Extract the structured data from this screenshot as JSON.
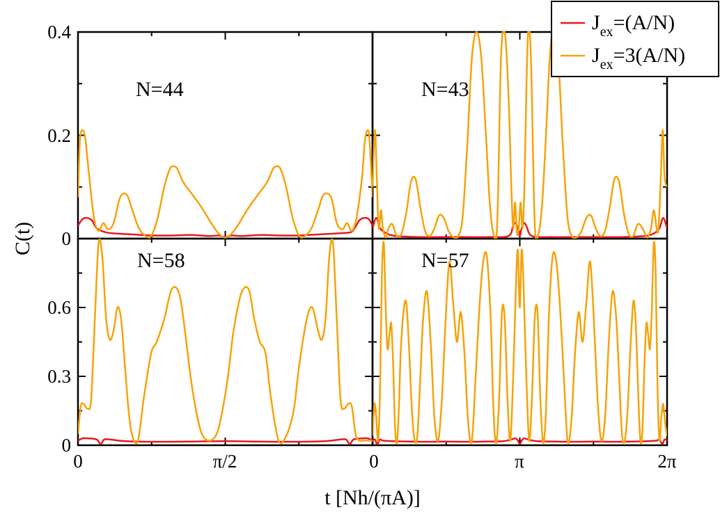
{
  "chart_data": {
    "type": "line",
    "xlabel": "t [Nh/(πA)]",
    "ylabel": "C(t)",
    "grid": false,
    "legend": {
      "placement": "top-right",
      "entries": [
        {
          "prefix": "J",
          "sub": "ex",
          "suffix": "=(A/N)",
          "color": "#e8181c"
        },
        {
          "prefix": "J",
          "sub": "ex",
          "suffix": "=3(A/N)",
          "color": "#f5a30a"
        }
      ]
    },
    "x_ticks_left": [
      "0",
      "π/2"
    ],
    "x_ticks_right": [
      "0",
      "π",
      "2π"
    ],
    "y_ticks_top": [
      "0.4",
      "0.2",
      "0"
    ],
    "y_ticks_bottom": [
      "0.6",
      "0.3",
      "0"
    ],
    "panels": [
      {
        "label": "N=44",
        "xlim": [
          0,
          3.1416
        ],
        "ylim": [
          0,
          0.4
        ],
        "series": [
          {
            "name": "Jex=(A/N)",
            "color": "#e8181c",
            "x": [
              0,
              0.05,
              0.1,
              0.15,
              0.2,
              0.3,
              0.4,
              0.6,
              0.8,
              1.0,
              1.2,
              1.4,
              1.5,
              1.57,
              1.64,
              1.75,
              1.95,
              2.15,
              2.35,
              2.55,
              2.75,
              2.9,
              2.95,
              3.0,
              3.05,
              3.1,
              3.1416
            ],
            "y": [
              0.025,
              0.038,
              0.04,
              0.035,
              0.02,
              0.012,
              0.01,
              0.008,
              0.006,
              0.006,
              0.007,
              0.005,
              0.006,
              0.003,
              0.006,
              0.005,
              0.007,
              0.006,
              0.006,
              0.008,
              0.01,
              0.012,
              0.02,
              0.035,
              0.04,
              0.038,
              0.025
            ]
          },
          {
            "name": "Jex=3(A/N)",
            "color": "#f5a30a",
            "x": [
              0,
              0.02,
              0.05,
              0.08,
              0.12,
              0.17,
              0.22,
              0.27,
              0.32,
              0.38,
              0.45,
              0.52,
              0.58,
              0.65,
              0.72,
              0.78,
              0.85,
              0.92,
              0.98,
              1.02,
              1.06,
              1.12,
              1.2,
              1.32,
              1.42,
              1.5,
              1.57,
              1.64,
              1.72,
              1.82,
              1.94,
              2.02,
              2.08,
              2.12,
              2.16,
              2.22,
              2.29,
              2.36,
              2.42,
              2.49,
              2.56,
              2.62,
              2.7,
              2.76,
              2.82,
              2.87,
              2.92,
              2.97,
              3.03,
              3.06,
              3.09,
              3.11,
              3.1416
            ],
            "y": [
              0.08,
              0.19,
              0.21,
              0.19,
              0.12,
              0.04,
              0.015,
              0.03,
              0.018,
              0.03,
              0.08,
              0.085,
              0.055,
              0.02,
              0.005,
              0.005,
              0.04,
              0.1,
              0.135,
              0.14,
              0.135,
              0.11,
              0.09,
              0.06,
              0.03,
              0.01,
              0.002,
              0.01,
              0.03,
              0.06,
              0.09,
              0.11,
              0.135,
              0.14,
              0.135,
              0.1,
              0.04,
              0.005,
              0.005,
              0.02,
              0.055,
              0.085,
              0.08,
              0.03,
              0.018,
              0.03,
              0.015,
              0.04,
              0.12,
              0.19,
              0.21,
              0.19,
              0.08
            ]
          }
        ]
      },
      {
        "label": "N=43",
        "xlim": [
          0,
          6.2832
        ],
        "ylim": [
          0,
          0.4
        ],
        "series": [
          {
            "name": "Jex=(A/N)",
            "color": "#e8181c",
            "x": [
              0,
              0.08,
              0.16,
              0.3,
              0.5,
              1.0,
              1.5,
              2.0,
              2.5,
              2.9,
              3.0,
              3.05,
              3.1,
              3.14,
              3.18,
              3.23,
              3.28,
              3.4,
              3.8,
              4.3,
              4.8,
              5.3,
              5.8,
              6.0,
              6.12,
              6.2,
              6.2832
            ],
            "y": [
              0.02,
              0.04,
              0.02,
              0.01,
              0.005,
              0.003,
              0.003,
              0.003,
              0.003,
              0.005,
              0.025,
              0.03,
              0.02,
              0.005,
              0.02,
              0.03,
              0.025,
              0.005,
              0.003,
              0.003,
              0.003,
              0.003,
              0.005,
              0.01,
              0.02,
              0.04,
              0.02
            ]
          },
          {
            "name": "Jex=3(A/N)",
            "color": "#f5a30a",
            "x": [
              0,
              0.05,
              0.09,
              0.13,
              0.18,
              0.22,
              0.28,
              0.34,
              0.42,
              0.52,
              0.62,
              0.72,
              0.82,
              0.92,
              1.02,
              1.12,
              1.22,
              1.32,
              1.42,
              1.52,
              1.62,
              1.72,
              1.82,
              1.92,
              2.02,
              2.12,
              2.22,
              2.32,
              2.42,
              2.5,
              2.58,
              2.66,
              2.74,
              2.82,
              2.9,
              2.96,
              3.0,
              3.04,
              3.08,
              3.12,
              3.16,
              3.2,
              3.24,
              3.28,
              3.32,
              3.38,
              3.46,
              3.54,
              3.62,
              3.7,
              3.78,
              3.86,
              3.96,
              4.06,
              4.16,
              4.26,
              4.36,
              4.46,
              4.56,
              4.66,
              4.76,
              4.86,
              4.96,
              5.06,
              5.16,
              5.26,
              5.36,
              5.46,
              5.56,
              5.66,
              5.76,
              5.86,
              5.94,
              6.0,
              6.06,
              6.1,
              6.15,
              6.19,
              6.23,
              6.2832
            ],
            "y": [
              0.1,
              0.21,
              0.12,
              0.02,
              0.055,
              0.02,
              0.002,
              0.02,
              0.028,
              0.005,
              0.01,
              0.05,
              0.11,
              0.115,
              0.06,
              0.015,
              0.005,
              0.02,
              0.045,
              0.04,
              0.015,
              0.003,
              0.004,
              0.04,
              0.18,
              0.35,
              0.4,
              0.35,
              0.2,
              0.07,
              0.01,
              0.03,
              0.35,
              0.4,
              0.28,
              0.1,
              0.02,
              0.07,
              0.01,
              0.02,
              0.07,
              0.02,
              0.1,
              0.28,
              0.4,
              0.35,
              0.03,
              0.01,
              0.07,
              0.2,
              0.35,
              0.4,
              0.35,
              0.18,
              0.04,
              0.004,
              0.003,
              0.015,
              0.04,
              0.045,
              0.02,
              0.005,
              0.015,
              0.06,
              0.115,
              0.11,
              0.05,
              0.01,
              0.005,
              0.028,
              0.02,
              0.002,
              0.02,
              0.055,
              0.02,
              0.02,
              0.12,
              0.21,
              0.12,
              0.1
            ]
          }
        ]
      },
      {
        "label": "N=58",
        "xlim": [
          0,
          3.1416
        ],
        "ylim": [
          0,
          0.9
        ],
        "series": [
          {
            "name": "Jex=(A/N)",
            "color": "#e8181c",
            "x": [
              0,
              0.05,
              0.1,
              0.2,
              0.24,
              0.28,
              0.34,
              0.5,
              0.8,
              1.2,
              1.57,
              1.9,
              2.3,
              2.64,
              2.8,
              2.86,
              2.9,
              2.94,
              3.04,
              3.09,
              3.1416
            ],
            "y": [
              0.02,
              0.03,
              0.03,
              0.025,
              0.005,
              0.025,
              0.025,
              0.018,
              0.015,
              0.016,
              0.018,
              0.016,
              0.015,
              0.018,
              0.025,
              0.025,
              0.005,
              0.025,
              0.03,
              0.03,
              0.02
            ]
          },
          {
            "name": "Jex=3(A/N)",
            "color": "#f5a30a",
            "x": [
              0,
              0.03,
              0.06,
              0.1,
              0.14,
              0.18,
              0.22,
              0.26,
              0.3,
              0.34,
              0.38,
              0.42,
              0.46,
              0.5,
              0.54,
              0.58,
              0.64,
              0.7,
              0.78,
              0.84,
              0.92,
              1.0,
              1.08,
              1.14,
              1.2,
              1.26,
              1.32,
              1.4,
              1.48,
              1.54,
              1.6,
              1.66,
              1.74,
              1.82,
              1.88,
              1.94,
              2.0,
              2.06,
              2.14,
              2.22,
              2.3,
              2.36,
              2.44,
              2.5,
              2.56,
              2.6,
              2.64,
              2.68,
              2.72,
              2.76,
              2.8,
              2.84,
              2.88,
              2.92,
              2.96,
              3.0,
              3.04,
              3.08,
              3.11,
              3.1416
            ],
            "y": [
              0.05,
              0.17,
              0.18,
              0.16,
              0.2,
              0.55,
              0.88,
              0.82,
              0.55,
              0.46,
              0.5,
              0.6,
              0.55,
              0.35,
              0.15,
              0.04,
              0.02,
              0.2,
              0.4,
              0.45,
              0.55,
              0.68,
              0.66,
              0.5,
              0.3,
              0.15,
              0.05,
              0.02,
              0.05,
              0.15,
              0.3,
              0.5,
              0.66,
              0.68,
              0.55,
              0.45,
              0.4,
              0.2,
              0.02,
              0.04,
              0.15,
              0.35,
              0.55,
              0.6,
              0.5,
              0.46,
              0.55,
              0.82,
              0.88,
              0.55,
              0.2,
              0.16,
              0.18,
              0.17,
              0.05,
              0.02,
              0.02,
              0.02,
              0.02,
              0.02
            ]
          }
        ]
      },
      {
        "label": "N=57",
        "xlim": [
          0,
          6.2832
        ],
        "ylim": [
          0,
          0.9
        ],
        "series": [
          {
            "name": "Jex=(A/N)",
            "color": "#e8181c",
            "x": [
              0,
              0.05,
              0.1,
              0.16,
              0.22,
              0.4,
              0.8,
              1.2,
              1.6,
              2.0,
              2.4,
              2.8,
              2.96,
              3.05,
              3.1,
              3.14,
              3.18,
              3.23,
              3.32,
              3.5,
              3.9,
              4.3,
              4.7,
              5.1,
              5.5,
              5.9,
              6.06,
              6.12,
              6.18,
              6.23,
              6.2832
            ],
            "y": [
              0.02,
              0.025,
              0.005,
              0.025,
              0.02,
              0.018,
              0.016,
              0.015,
              0.016,
              0.015,
              0.016,
              0.018,
              0.025,
              0.03,
              0.02,
              0.005,
              0.02,
              0.03,
              0.025,
              0.018,
              0.016,
              0.015,
              0.016,
              0.015,
              0.016,
              0.018,
              0.02,
              0.025,
              0.005,
              0.025,
              0.02
            ]
          },
          {
            "name": "Jex=3(A/N)",
            "color": "#f5a30a",
            "x": [
              0,
              0.04,
              0.08,
              0.12,
              0.16,
              0.2,
              0.24,
              0.28,
              0.32,
              0.36,
              0.4,
              0.44,
              0.48,
              0.52,
              0.56,
              0.6,
              0.66,
              0.72,
              0.78,
              0.84,
              0.9,
              0.96,
              1.02,
              1.08,
              1.16,
              1.24,
              1.32,
              1.4,
              1.48,
              1.56,
              1.64,
              1.72,
              1.8,
              1.88,
              1.96,
              2.04,
              2.12,
              2.2,
              2.28,
              2.36,
              2.44,
              2.52,
              2.58,
              2.64,
              2.7,
              2.76,
              2.82,
              2.88,
              2.94,
              3.0,
              3.06,
              3.1,
              3.14,
              3.18,
              3.22,
              3.28,
              3.34,
              3.4,
              3.46,
              3.52,
              3.58,
              3.64,
              3.7,
              3.76,
              3.84,
              3.92,
              4.0,
              4.08,
              4.16,
              4.24,
              4.32,
              4.4,
              4.48,
              4.56,
              4.64,
              4.72,
              4.8,
              4.88,
              4.96,
              5.04,
              5.12,
              5.2,
              5.26,
              5.32,
              5.38,
              5.44,
              5.5,
              5.56,
              5.6,
              5.64,
              5.68,
              5.72,
              5.76,
              5.8,
              5.84,
              5.88,
              5.92,
              5.96,
              6.0,
              6.04,
              6.08,
              6.12,
              6.16,
              6.2,
              6.24,
              6.2832
            ],
            "y": [
              0.04,
              0.18,
              0.12,
              0.02,
              0.25,
              0.75,
              0.88,
              0.6,
              0.42,
              0.48,
              0.53,
              0.35,
              0.08,
              0.01,
              0.15,
              0.4,
              0.58,
              0.62,
              0.42,
              0.15,
              0.02,
              0.05,
              0.3,
              0.55,
              0.67,
              0.45,
              0.12,
              0.02,
              0.2,
              0.55,
              0.8,
              0.62,
              0.45,
              0.58,
              0.4,
              0.1,
              0.02,
              0.3,
              0.6,
              0.8,
              0.82,
              0.55,
              0.15,
              0.01,
              0.2,
              0.58,
              0.55,
              0.2,
              0.02,
              0.3,
              0.7,
              0.85,
              0.6,
              0.85,
              0.7,
              0.3,
              0.02,
              0.2,
              0.55,
              0.58,
              0.2,
              0.01,
              0.15,
              0.55,
              0.82,
              0.8,
              0.6,
              0.3,
              0.02,
              0.1,
              0.4,
              0.58,
              0.45,
              0.62,
              0.8,
              0.55,
              0.2,
              0.02,
              0.12,
              0.45,
              0.67,
              0.55,
              0.3,
              0.05,
              0.02,
              0.15,
              0.42,
              0.62,
              0.58,
              0.4,
              0.15,
              0.01,
              0.08,
              0.35,
              0.53,
              0.48,
              0.42,
              0.6,
              0.88,
              0.75,
              0.25,
              0.02,
              0.12,
              0.18,
              0.1,
              0.04
            ]
          }
        ]
      }
    ]
  }
}
